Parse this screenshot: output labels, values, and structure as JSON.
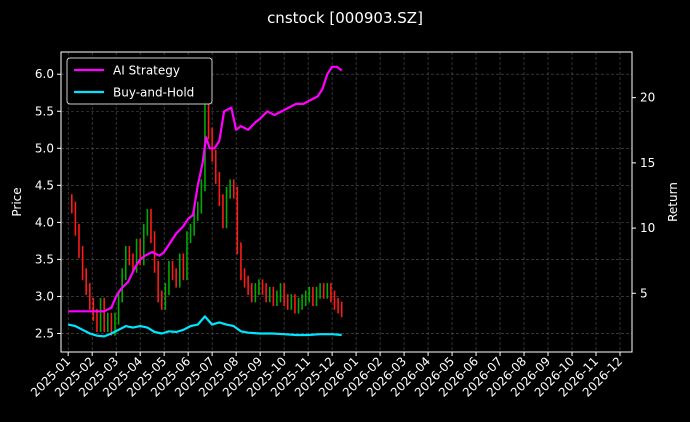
{
  "chart_data": {
    "type": "line",
    "title": "cnstock [000903.SZ]",
    "xlabel": "",
    "ylabel": "Price",
    "y2label": "Return",
    "x_ticks": [
      "2025-01",
      "2025-02",
      "2025-03",
      "2025-04",
      "2025-05",
      "2025-06",
      "2025-07",
      "2025-08",
      "2025-09",
      "2025-10",
      "2025-11",
      "2025-12",
      "2026-01",
      "2026-02",
      "2026-03",
      "2026-04",
      "2026-05",
      "2026-06",
      "2026-07",
      "2026-08",
      "2026-09",
      "2026-10",
      "2026-11",
      "2026-12"
    ],
    "xlim_months": [
      -0.3,
      23.5
    ],
    "ylim": [
      2.25,
      6.3
    ],
    "y_ticks": [
      2.5,
      3.0,
      3.5,
      4.0,
      4.5,
      5.0,
      5.5,
      6.0
    ],
    "y_tick_labels": [
      "2.5",
      "3.0",
      "3.5",
      "4.0",
      "4.5",
      "5.0",
      "5.5",
      "6.0"
    ],
    "y2lim": [
      0.5,
      23.5
    ],
    "y2_ticks": [
      5,
      10,
      15,
      20
    ],
    "y2_tick_labels": [
      "5",
      "10",
      "15",
      "20"
    ],
    "grid": true,
    "legend_position": "top-left",
    "colors": {
      "ai": "#ff00ff",
      "bh": "#00e5ff",
      "up": "#00aa00",
      "down": "#ff1a1a",
      "grid": "#555555"
    },
    "price_series": [
      {
        "m": 0.0,
        "v": 4.3
      },
      {
        "m": 0.15,
        "v": 4.2
      },
      {
        "m": 0.3,
        "v": 3.9
      },
      {
        "m": 0.45,
        "v": 3.6
      },
      {
        "m": 0.6,
        "v": 3.3
      },
      {
        "m": 0.75,
        "v": 3.1
      },
      {
        "m": 0.9,
        "v": 2.9
      },
      {
        "m": 1.05,
        "v": 2.75
      },
      {
        "m": 1.2,
        "v": 2.6
      },
      {
        "m": 1.35,
        "v": 2.9
      },
      {
        "m": 1.5,
        "v": 2.6
      },
      {
        "m": 1.65,
        "v": 2.7
      },
      {
        "m": 1.8,
        "v": 2.55
      },
      {
        "m": 1.95,
        "v": 2.7
      },
      {
        "m": 2.1,
        "v": 3.0
      },
      {
        "m": 2.25,
        "v": 3.3
      },
      {
        "m": 2.4,
        "v": 3.6
      },
      {
        "m": 2.55,
        "v": 3.5
      },
      {
        "m": 2.7,
        "v": 3.4
      },
      {
        "m": 2.85,
        "v": 3.7
      },
      {
        "m": 3.0,
        "v": 3.5
      },
      {
        "m": 3.15,
        "v": 3.9
      },
      {
        "m": 3.3,
        "v": 4.1
      },
      {
        "m": 3.45,
        "v": 3.8
      },
      {
        "m": 3.6,
        "v": 3.4
      },
      {
        "m": 3.75,
        "v": 3.0
      },
      {
        "m": 3.9,
        "v": 2.9
      },
      {
        "m": 4.05,
        "v": 3.1
      },
      {
        "m": 4.2,
        "v": 3.4
      },
      {
        "m": 4.35,
        "v": 3.3
      },
      {
        "m": 4.5,
        "v": 3.2
      },
      {
        "m": 4.65,
        "v": 3.5
      },
      {
        "m": 4.8,
        "v": 3.3
      },
      {
        "m": 4.95,
        "v": 3.8
      },
      {
        "m": 5.1,
        "v": 3.9
      },
      {
        "m": 5.25,
        "v": 4.1
      },
      {
        "m": 5.4,
        "v": 4.2
      },
      {
        "m": 5.55,
        "v": 4.5
      },
      {
        "m": 5.7,
        "v": 5.6
      },
      {
        "m": 5.85,
        "v": 5.2
      },
      {
        "m": 6.0,
        "v": 4.9
      },
      {
        "m": 6.15,
        "v": 4.6
      },
      {
        "m": 6.3,
        "v": 4.3
      },
      {
        "m": 6.45,
        "v": 4.0
      },
      {
        "m": 6.6,
        "v": 4.4
      },
      {
        "m": 6.75,
        "v": 4.5
      },
      {
        "m": 6.9,
        "v": 4.4
      },
      {
        "m": 7.05,
        "v": 3.65
      },
      {
        "m": 7.2,
        "v": 3.3
      },
      {
        "m": 7.35,
        "v": 3.2
      },
      {
        "m": 7.5,
        "v": 3.1
      },
      {
        "m": 7.65,
        "v": 3.0
      },
      {
        "m": 7.8,
        "v": 3.1
      },
      {
        "m": 7.95,
        "v": 3.15
      },
      {
        "m": 8.1,
        "v": 3.1
      },
      {
        "m": 8.25,
        "v": 3.0
      },
      {
        "m": 8.4,
        "v": 3.05
      },
      {
        "m": 8.55,
        "v": 2.95
      },
      {
        "m": 8.7,
        "v": 3.0
      },
      {
        "m": 8.85,
        "v": 3.1
      },
      {
        "m": 9.0,
        "v": 2.95
      },
      {
        "m": 9.15,
        "v": 2.9
      },
      {
        "m": 9.3,
        "v": 2.95
      },
      {
        "m": 9.45,
        "v": 2.85
      },
      {
        "m": 9.6,
        "v": 2.9
      },
      {
        "m": 9.75,
        "v": 2.95
      },
      {
        "m": 9.9,
        "v": 3.0
      },
      {
        "m": 10.05,
        "v": 3.05
      },
      {
        "m": 10.2,
        "v": 2.95
      },
      {
        "m": 10.35,
        "v": 3.05
      },
      {
        "m": 10.5,
        "v": 3.1
      },
      {
        "m": 10.65,
        "v": 3.05
      },
      {
        "m": 10.8,
        "v": 3.1
      },
      {
        "m": 10.95,
        "v": 3.0
      },
      {
        "m": 11.1,
        "v": 2.9
      },
      {
        "m": 11.25,
        "v": 2.85
      },
      {
        "m": 11.4,
        "v": 2.8
      }
    ],
    "ai_strategy": [
      {
        "m": 0.0,
        "v": 2.8
      },
      {
        "m": 0.5,
        "v": 2.8
      },
      {
        "m": 1.0,
        "v": 2.8
      },
      {
        "m": 1.5,
        "v": 2.8
      },
      {
        "m": 1.8,
        "v": 2.85
      },
      {
        "m": 2.0,
        "v": 3.0
      },
      {
        "m": 2.2,
        "v": 3.1
      },
      {
        "m": 2.5,
        "v": 3.2
      },
      {
        "m": 2.8,
        "v": 3.4
      },
      {
        "m": 3.0,
        "v": 3.5
      },
      {
        "m": 3.2,
        "v": 3.55
      },
      {
        "m": 3.5,
        "v": 3.6
      },
      {
        "m": 3.8,
        "v": 3.55
      },
      {
        "m": 4.0,
        "v": 3.6
      },
      {
        "m": 4.2,
        "v": 3.7
      },
      {
        "m": 4.5,
        "v": 3.85
      },
      {
        "m": 4.8,
        "v": 3.95
      },
      {
        "m": 5.0,
        "v": 4.05
      },
      {
        "m": 5.2,
        "v": 4.1
      },
      {
        "m": 5.4,
        "v": 4.5
      },
      {
        "m": 5.6,
        "v": 4.8
      },
      {
        "m": 5.75,
        "v": 5.15
      },
      {
        "m": 5.9,
        "v": 5.0
      },
      {
        "m": 6.1,
        "v": 5.0
      },
      {
        "m": 6.3,
        "v": 5.1
      },
      {
        "m": 6.5,
        "v": 5.5
      },
      {
        "m": 6.8,
        "v": 5.55
      },
      {
        "m": 7.0,
        "v": 5.25
      },
      {
        "m": 7.2,
        "v": 5.3
      },
      {
        "m": 7.5,
        "v": 5.25
      },
      {
        "m": 7.8,
        "v": 5.35
      },
      {
        "m": 8.0,
        "v": 5.4
      },
      {
        "m": 8.3,
        "v": 5.5
      },
      {
        "m": 8.6,
        "v": 5.45
      },
      {
        "m": 8.9,
        "v": 5.5
      },
      {
        "m": 9.2,
        "v": 5.55
      },
      {
        "m": 9.5,
        "v": 5.6
      },
      {
        "m": 9.8,
        "v": 5.6
      },
      {
        "m": 10.1,
        "v": 5.65
      },
      {
        "m": 10.4,
        "v": 5.7
      },
      {
        "m": 10.6,
        "v": 5.8
      },
      {
        "m": 10.8,
        "v": 6.0
      },
      {
        "m": 11.0,
        "v": 6.1
      },
      {
        "m": 11.2,
        "v": 6.1
      },
      {
        "m": 11.4,
        "v": 6.05
      }
    ],
    "buy_and_hold": [
      {
        "m": 0.0,
        "v": 2.62
      },
      {
        "m": 0.3,
        "v": 2.6
      },
      {
        "m": 0.6,
        "v": 2.55
      },
      {
        "m": 0.9,
        "v": 2.5
      },
      {
        "m": 1.2,
        "v": 2.47
      },
      {
        "m": 1.5,
        "v": 2.46
      },
      {
        "m": 1.8,
        "v": 2.5
      },
      {
        "m": 2.1,
        "v": 2.55
      },
      {
        "m": 2.4,
        "v": 2.6
      },
      {
        "m": 2.7,
        "v": 2.58
      },
      {
        "m": 3.0,
        "v": 2.6
      },
      {
        "m": 3.3,
        "v": 2.58
      },
      {
        "m": 3.6,
        "v": 2.52
      },
      {
        "m": 3.9,
        "v": 2.5
      },
      {
        "m": 4.2,
        "v": 2.53
      },
      {
        "m": 4.5,
        "v": 2.52
      },
      {
        "m": 4.8,
        "v": 2.55
      },
      {
        "m": 5.1,
        "v": 2.6
      },
      {
        "m": 5.4,
        "v": 2.62
      },
      {
        "m": 5.7,
        "v": 2.73
      },
      {
        "m": 6.0,
        "v": 2.62
      },
      {
        "m": 6.3,
        "v": 2.65
      },
      {
        "m": 6.6,
        "v": 2.62
      },
      {
        "m": 6.9,
        "v": 2.6
      },
      {
        "m": 7.2,
        "v": 2.53
      },
      {
        "m": 7.5,
        "v": 2.51
      },
      {
        "m": 8.0,
        "v": 2.5
      },
      {
        "m": 8.5,
        "v": 2.5
      },
      {
        "m": 9.0,
        "v": 2.49
      },
      {
        "m": 9.5,
        "v": 2.48
      },
      {
        "m": 10.0,
        "v": 2.48
      },
      {
        "m": 10.5,
        "v": 2.49
      },
      {
        "m": 11.0,
        "v": 2.49
      },
      {
        "m": 11.4,
        "v": 2.48
      }
    ],
    "legend": [
      "AI Strategy",
      "Buy-and-Hold"
    ]
  }
}
